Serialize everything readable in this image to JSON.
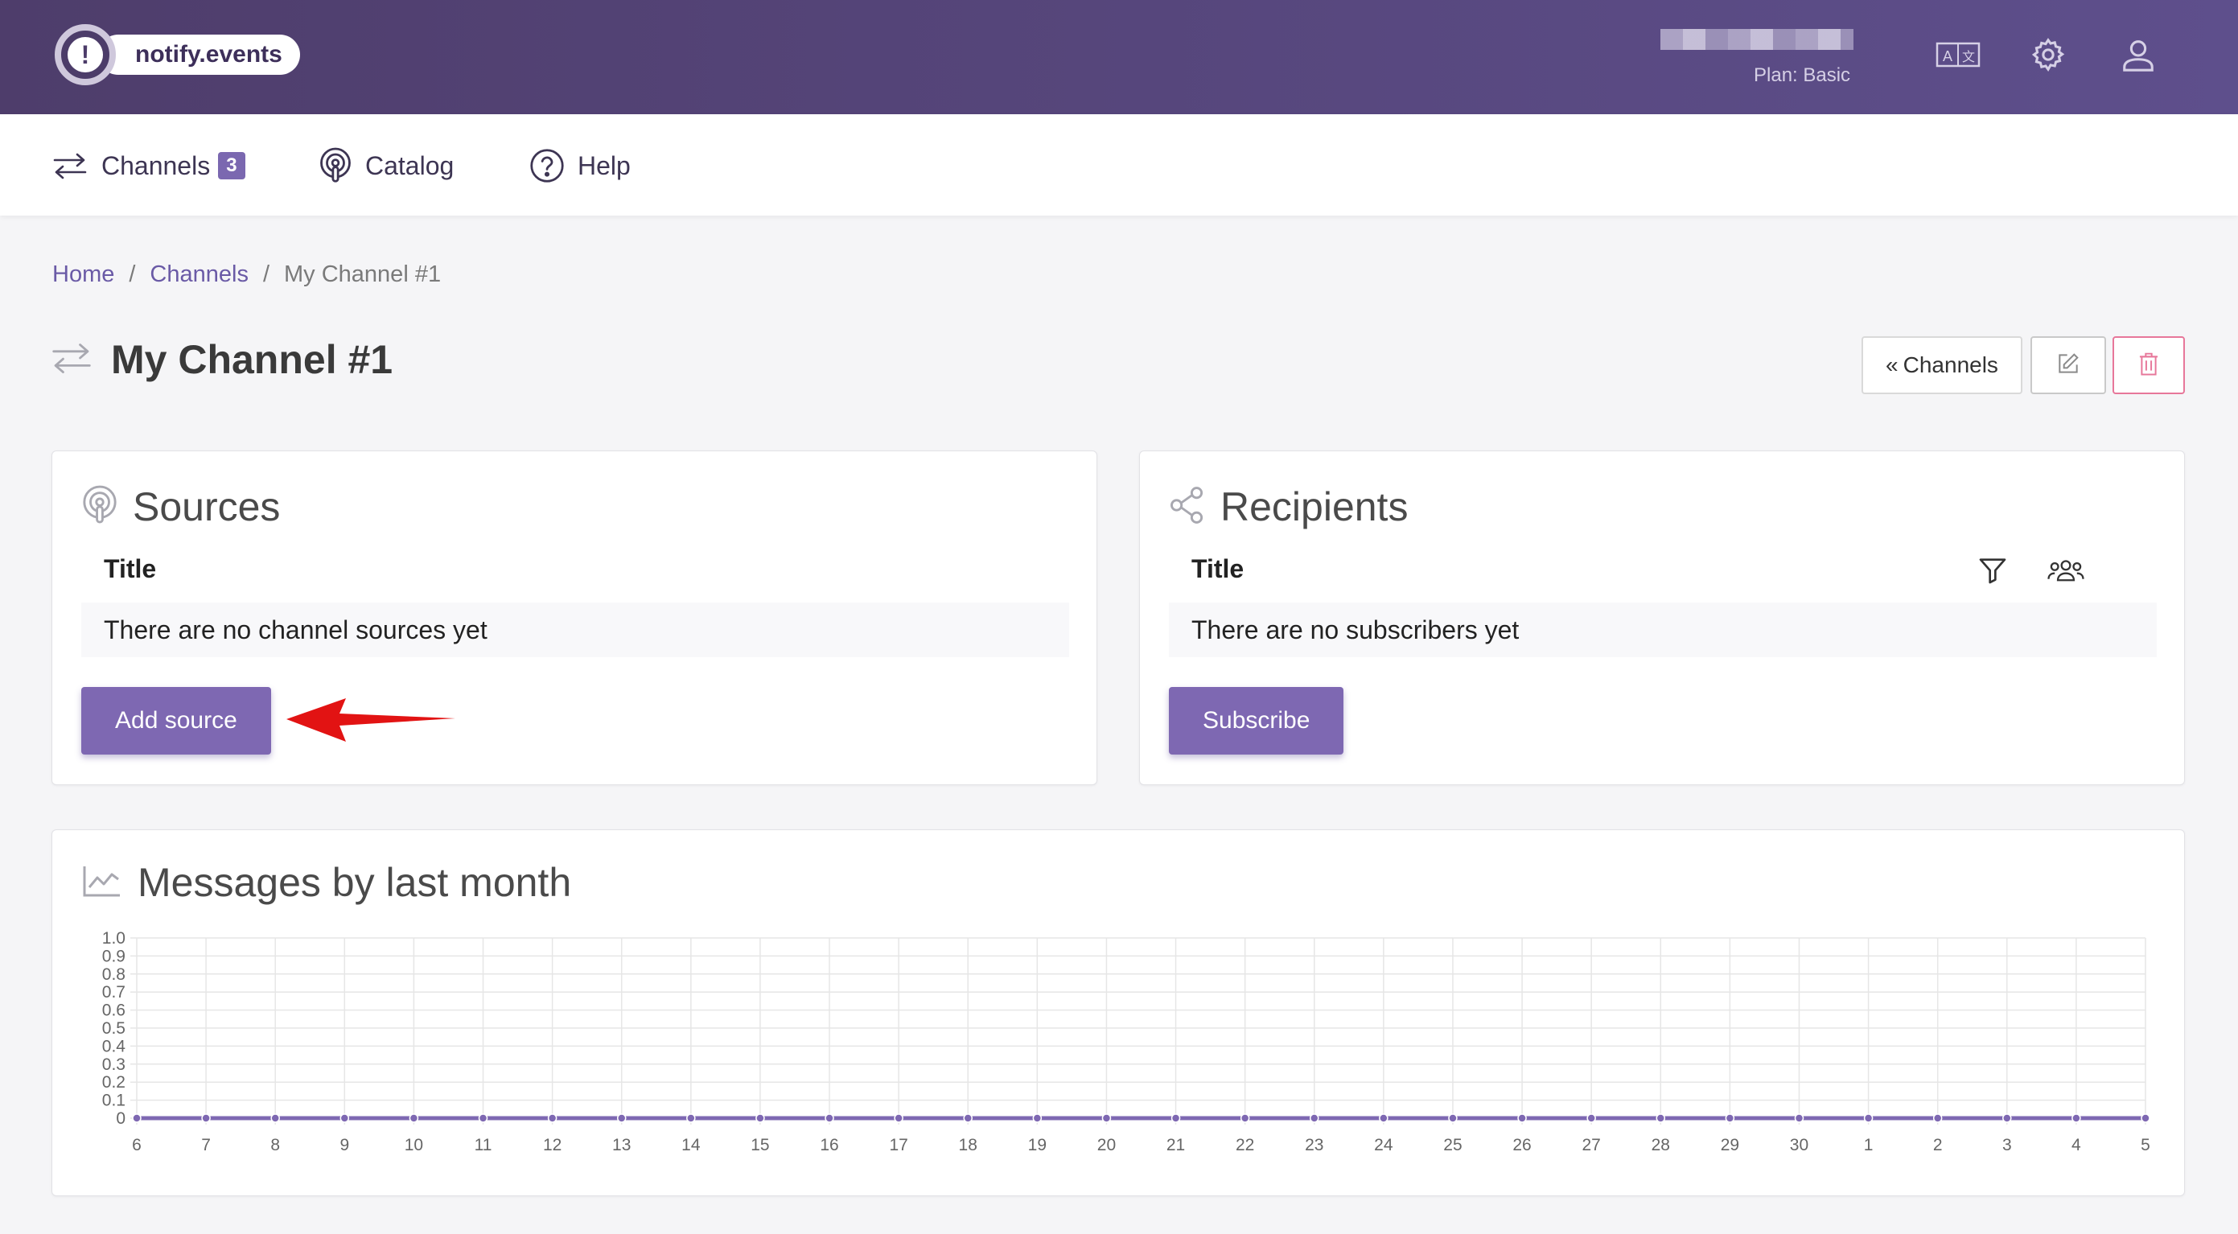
{
  "header": {
    "logo_text": "notify.events",
    "plan_label": "Plan: Basic",
    "icons": [
      "translate-icon",
      "gear-icon",
      "user-icon"
    ],
    "colors": {
      "bar_start": "#4e3d6b",
      "bar_end": "#5e4f8c"
    }
  },
  "nav": {
    "items": [
      {
        "label": "Channels",
        "badge": "3",
        "icon": "swap-arrows-icon"
      },
      {
        "label": "Catalog",
        "icon": "podcast-icon"
      },
      {
        "label": "Help",
        "icon": "question-icon"
      }
    ]
  },
  "breadcrumb": {
    "items": [
      "Home",
      "Channels",
      "My Channel #1"
    ],
    "separator": "/"
  },
  "page": {
    "title": "My Channel #1",
    "back_button": "Channels",
    "back_prefix": "«"
  },
  "sources": {
    "title": "Sources",
    "column": "Title",
    "empty": "There are no channel sources yet",
    "button": "Add source"
  },
  "recipients": {
    "title": "Recipients",
    "column": "Title",
    "empty": "There are no subscribers yet",
    "button": "Subscribe"
  },
  "messages": {
    "title": "Messages by last month"
  },
  "chart_data": {
    "type": "line",
    "title": "",
    "xlabel": "",
    "ylabel": "",
    "x": [
      "6",
      "7",
      "8",
      "9",
      "10",
      "11",
      "12",
      "13",
      "14",
      "15",
      "16",
      "17",
      "18",
      "19",
      "20",
      "21",
      "22",
      "23",
      "24",
      "25",
      "26",
      "27",
      "28",
      "29",
      "30",
      "1",
      "2",
      "3",
      "4",
      "5"
    ],
    "series": [
      {
        "values": [
          0,
          0,
          0,
          0,
          0,
          0,
          0,
          0,
          0,
          0,
          0,
          0,
          0,
          0,
          0,
          0,
          0,
          0,
          0,
          0,
          0,
          0,
          0,
          0,
          0,
          0,
          0,
          0,
          0,
          0
        ],
        "color": "#7e68b2"
      }
    ],
    "yticks": [
      "0",
      "0.1",
      "0.2",
      "0.3",
      "0.4",
      "0.5",
      "0.6",
      "0.7",
      "0.8",
      "0.9",
      "1.0"
    ],
    "ylim": [
      0,
      1.0
    ],
    "grid": true,
    "legend": "none"
  },
  "accent_color": "#7e68b2",
  "danger_color": "#e7779a"
}
